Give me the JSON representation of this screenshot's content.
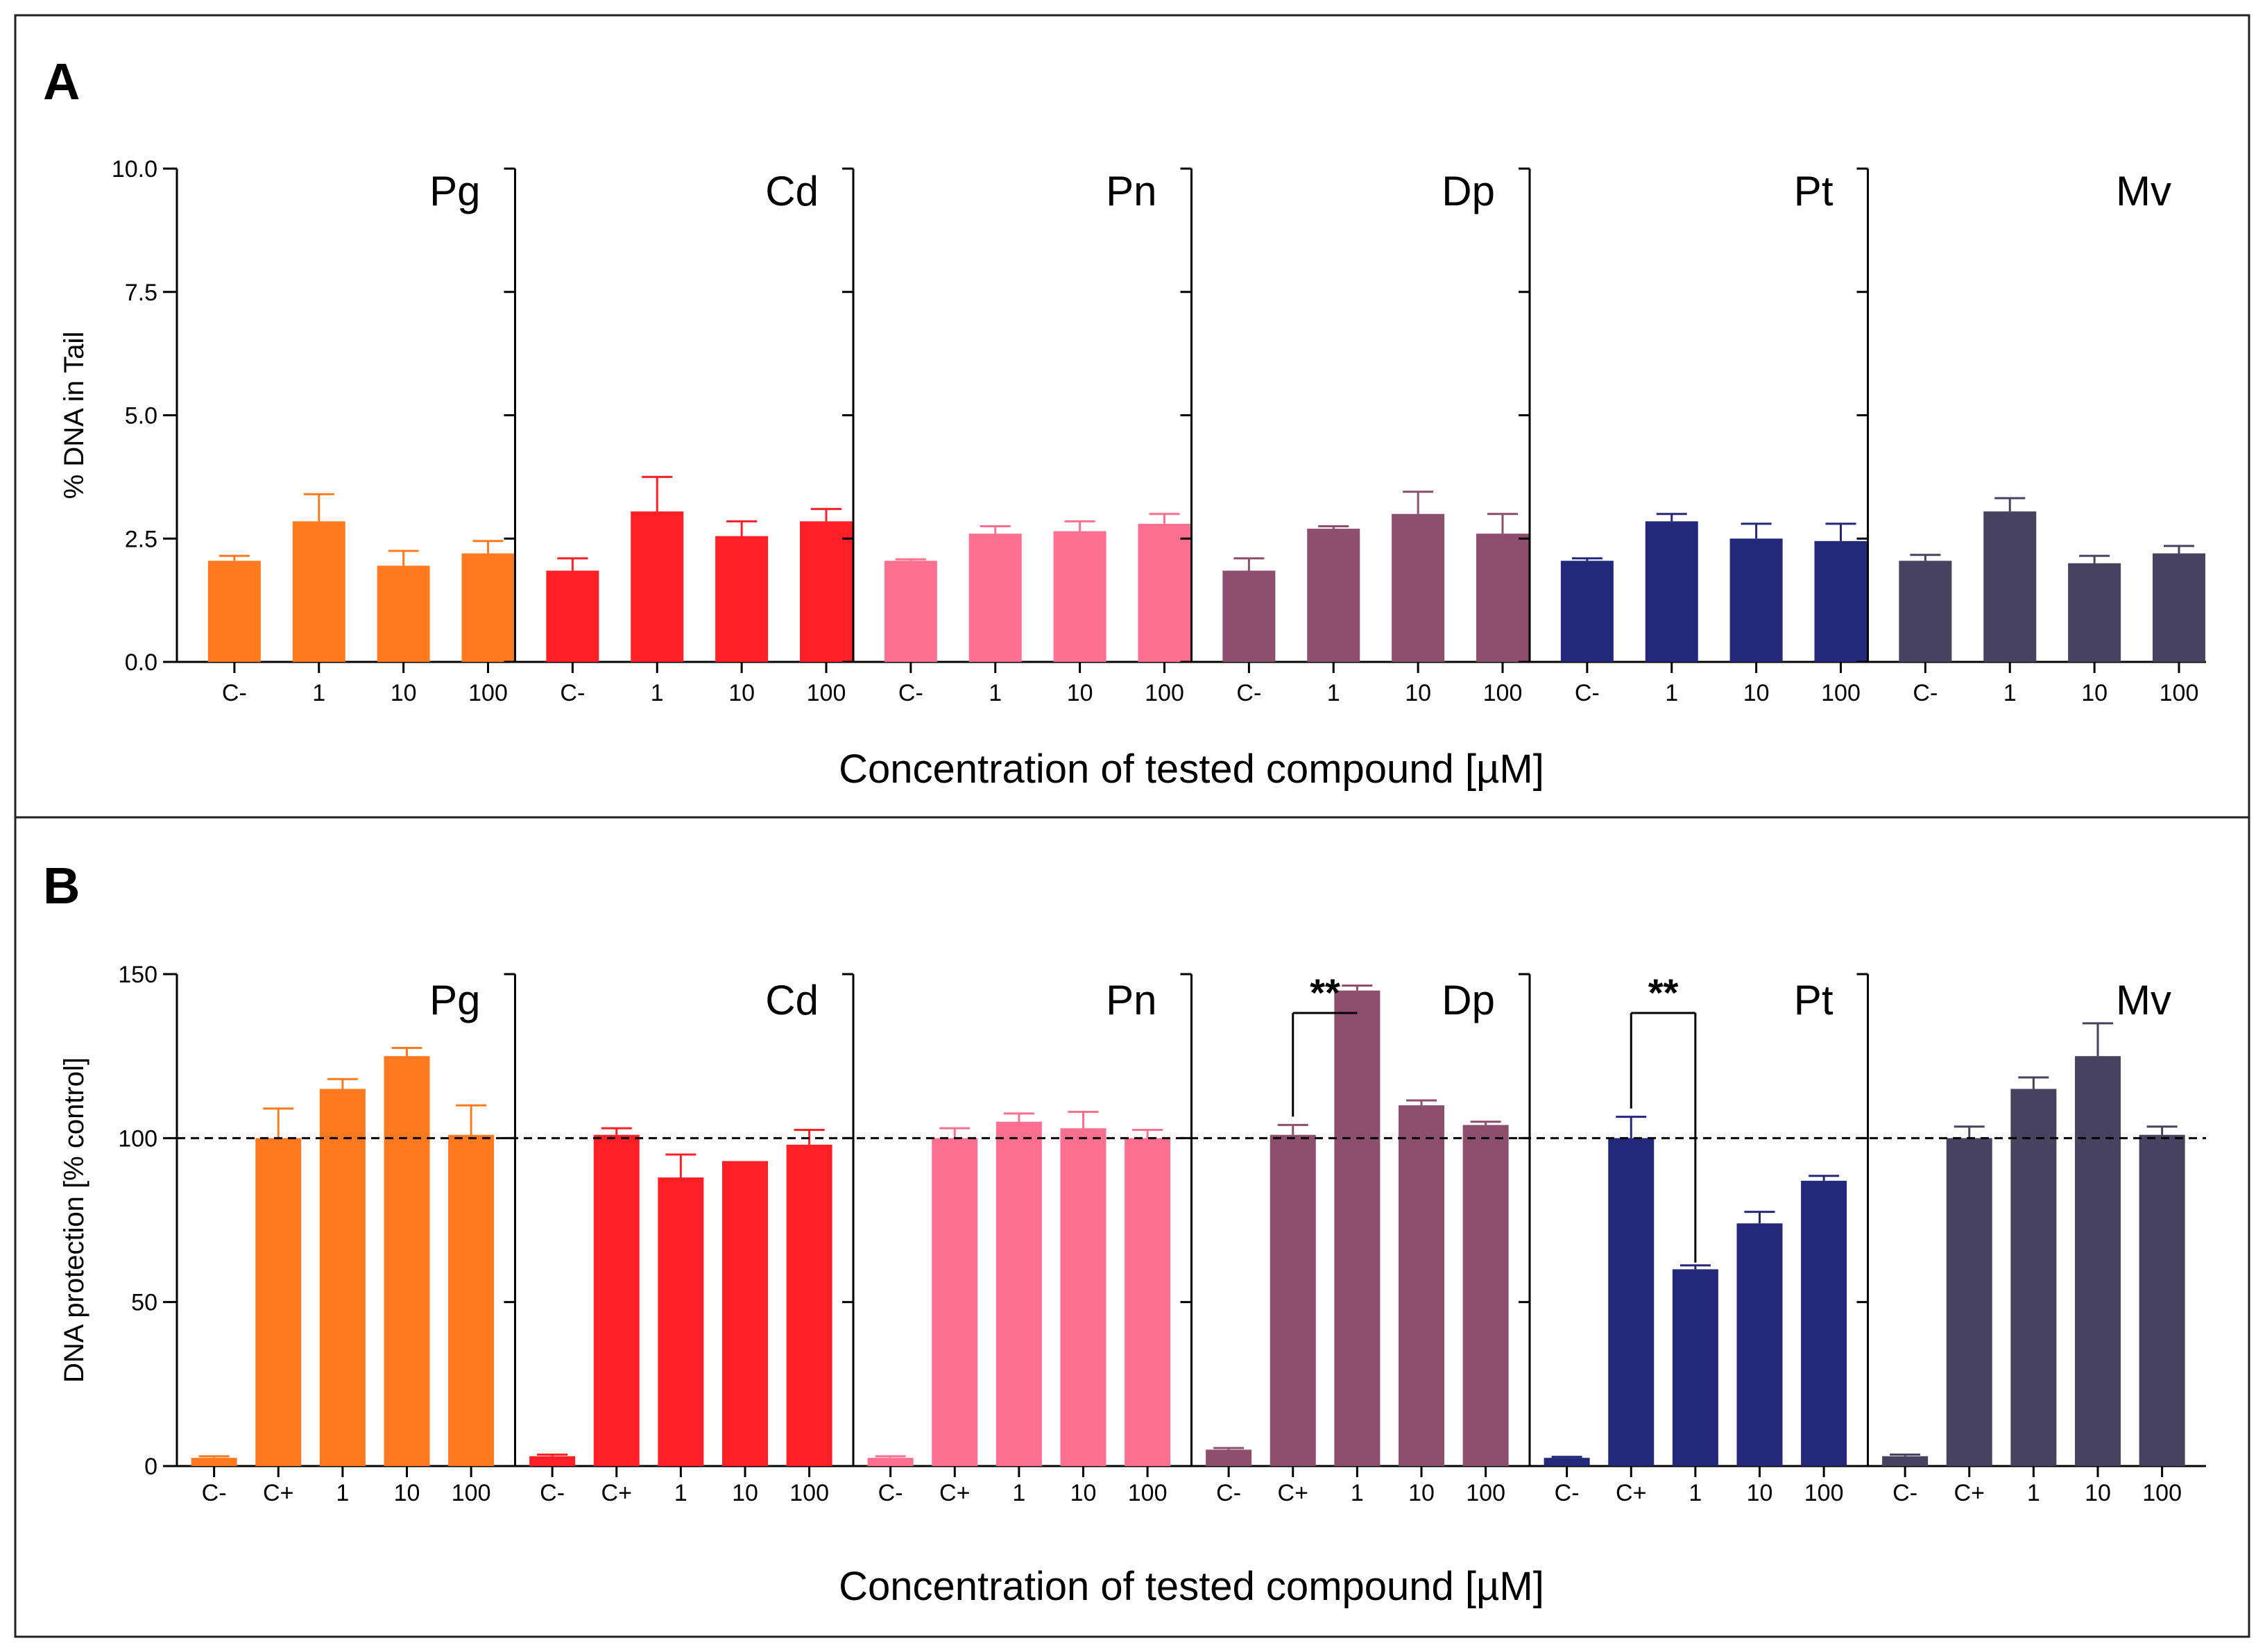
{
  "chart_data": [
    {
      "panel_letter": "A",
      "type": "bar",
      "ylabel": "% DNA in Tail",
      "xlabel": "Concentration of tested compound [µM]",
      "ylim": [
        0,
        10
      ],
      "yticks": [
        "0.0",
        "2.5",
        "5.0",
        "7.5",
        "10.0"
      ],
      "categories": [
        "C-",
        "1",
        "10",
        "100"
      ],
      "reference_line": null,
      "series": [
        {
          "name": "Pg",
          "color": "#FF7A1F",
          "values": [
            2.05,
            2.85,
            1.95,
            2.2
          ],
          "errors": [
            0.1,
            0.55,
            0.3,
            0.25
          ]
        },
        {
          "name": "Cd",
          "color": "#FF1F27",
          "values": [
            1.85,
            3.05,
            2.55,
            2.85
          ],
          "errors": [
            0.25,
            0.7,
            0.3,
            0.25
          ]
        },
        {
          "name": "Pn",
          "color": "#FF7090",
          "values": [
            2.05,
            2.6,
            2.65,
            2.8
          ],
          "errors": [
            0.03,
            0.15,
            0.2,
            0.2
          ]
        },
        {
          "name": "Dp",
          "color": "#8E4F6E",
          "values": [
            1.85,
            2.7,
            3.0,
            2.6
          ],
          "errors": [
            0.25,
            0.05,
            0.45,
            0.4
          ]
        },
        {
          "name": "Pt",
          "color": "#23287A",
          "values": [
            2.05,
            2.85,
            2.5,
            2.45
          ],
          "errors": [
            0.05,
            0.15,
            0.3,
            0.35
          ]
        },
        {
          "name": "Mv",
          "color": "#47425F",
          "values": [
            2.05,
            3.05,
            2.0,
            2.2
          ],
          "errors": [
            0.12,
            0.27,
            0.15,
            0.15
          ]
        }
      ]
    },
    {
      "panel_letter": "B",
      "type": "bar",
      "ylabel": "DNA protection [% control]",
      "xlabel": "Concentration of tested compound [µM]",
      "ylim": [
        0,
        150
      ],
      "yticks": [
        "0",
        "50",
        "100",
        "150"
      ],
      "categories": [
        "C-",
        "C+",
        "1",
        "10",
        "100"
      ],
      "reference_line": 100,
      "series": [
        {
          "name": "Pg",
          "color": "#FF7A1F",
          "values": [
            2.5,
            100,
            115,
            125,
            101
          ],
          "errors": [
            0.5,
            9,
            3,
            2.5,
            9
          ],
          "significance": null
        },
        {
          "name": "Cd",
          "color": "#FF1F27",
          "values": [
            3,
            101,
            88,
            93,
            98
          ],
          "errors": [
            0.5,
            2,
            7,
            0,
            4.5
          ],
          "significance": null
        },
        {
          "name": "Pn",
          "color": "#FF7090",
          "values": [
            2.5,
            100,
            105,
            103,
            100
          ],
          "errors": [
            0.5,
            3,
            2.5,
            5,
            2.5
          ],
          "significance": null
        },
        {
          "name": "Dp",
          "color": "#8E4F6E",
          "values": [
            5,
            101,
            145,
            110,
            104
          ],
          "errors": [
            0.5,
            3,
            1.5,
            1.5,
            1
          ],
          "significance": {
            "from": 1,
            "to": 2,
            "label": "**"
          }
        },
        {
          "name": "Pt",
          "color": "#23287A",
          "values": [
            2.5,
            100,
            60,
            74,
            87
          ],
          "errors": [
            0.3,
            6.5,
            1.2,
            3.5,
            1.5
          ],
          "significance": {
            "from": 1,
            "to": 2,
            "label": "**"
          }
        },
        {
          "name": "Mv",
          "color": "#47425F",
          "values": [
            3,
            100,
            115,
            125,
            101
          ],
          "errors": [
            0.5,
            3.5,
            3.5,
            10,
            2.5
          ],
          "significance": null
        }
      ]
    }
  ]
}
